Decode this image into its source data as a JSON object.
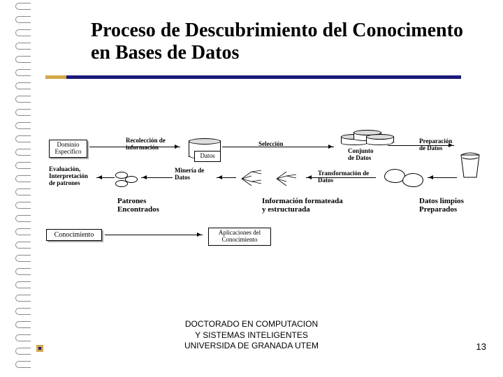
{
  "title": "Proceso de Descubrimiento del Conocimento en Bases de Datos",
  "footer": {
    "line1": "DOCTORADO EN COMPUTACION",
    "line2": "Y SISTEMAS INTELIGENTES",
    "line3": "UNIVERSIDA DE GRANADA UTEM"
  },
  "page_number": "13",
  "colors": {
    "accent_blue": "#1a1a7a",
    "accent_gold": "#d4a84a",
    "text": "#000000",
    "bg": "#ffffff"
  },
  "diagram": {
    "dominio_especifico": "Dominio\nEspecífico",
    "recoleccion": "Recolección de\ninformación",
    "datos": "Datos",
    "seleccion": "Selección",
    "conjunto_datos": "Conjunto\nde Datos",
    "preparacion": "Preparación\nde Datos",
    "evaluacion": "Evaluación,\nInterpretación\nde patrones",
    "mineria": "Minería de\nDatos",
    "transformacion": "Transformación de\nDatos",
    "patrones": "Patrones\nEncontrados",
    "info_formateada": "Información formateada\ny estructurada",
    "datos_limpios": "Datos limpios\nPreparados",
    "conocimiento": "Conocimiento",
    "aplicaciones": "Aplicaciones del\nConocimiento"
  }
}
